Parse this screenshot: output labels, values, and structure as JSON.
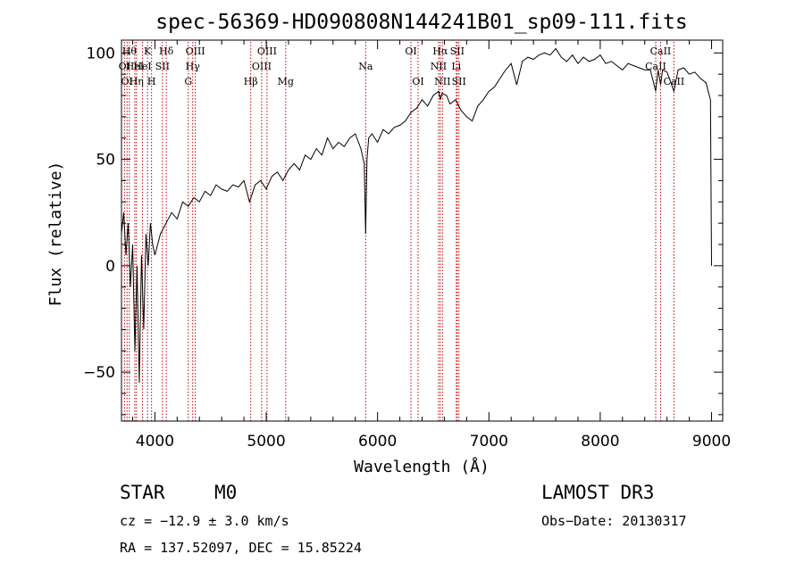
{
  "chart_data": {
    "type": "line",
    "title": "spec-56369-HD090808N144241B01_sp09-111.fits",
    "xlabel": "Wavelength (Å)",
    "ylabel": "Flux (relative)",
    "xlim": [
      3700,
      9100
    ],
    "ylim": [
      -73,
      106
    ],
    "x_ticks": [
      4000,
      5000,
      6000,
      7000,
      8000,
      9000
    ],
    "y_ticks": [
      -50,
      0,
      50,
      100
    ],
    "grid": false,
    "series": [
      {
        "name": "flux",
        "x": [
          3700,
          3720,
          3740,
          3760,
          3780,
          3800,
          3820,
          3840,
          3860,
          3880,
          3900,
          3920,
          3940,
          3960,
          3980,
          4000,
          4050,
          4100,
          4150,
          4200,
          4250,
          4300,
          4350,
          4400,
          4450,
          4500,
          4550,
          4600,
          4650,
          4700,
          4750,
          4800,
          4850,
          4900,
          4950,
          5000,
          5050,
          5100,
          5150,
          5200,
          5250,
          5300,
          5350,
          5400,
          5450,
          5500,
          5550,
          5600,
          5650,
          5700,
          5750,
          5800,
          5850,
          5880,
          5893,
          5905,
          5920,
          5950,
          6000,
          6050,
          6100,
          6150,
          6200,
          6250,
          6300,
          6350,
          6400,
          6450,
          6500,
          6550,
          6563,
          6580,
          6620,
          6650,
          6700,
          6750,
          6800,
          6850,
          6900,
          6950,
          7000,
          7050,
          7100,
          7150,
          7200,
          7250,
          7300,
          7350,
          7400,
          7450,
          7500,
          7550,
          7600,
          7650,
          7700,
          7750,
          7800,
          7850,
          7900,
          7950,
          8000,
          8050,
          8100,
          8150,
          8200,
          8250,
          8300,
          8350,
          8400,
          8450,
          8498,
          8520,
          8542,
          8560,
          8600,
          8662,
          8700,
          8750,
          8800,
          8850,
          8900,
          8950,
          8990,
          9000
        ],
        "values": [
          15,
          25,
          5,
          20,
          -10,
          10,
          -40,
          0,
          -55,
          5,
          -30,
          15,
          0,
          20,
          10,
          5,
          15,
          20,
          25,
          22,
          30,
          28,
          32,
          30,
          35,
          33,
          38,
          36,
          35,
          38,
          37,
          40,
          30,
          38,
          40,
          36,
          42,
          44,
          40,
          45,
          48,
          45,
          52,
          50,
          55,
          52,
          60,
          55,
          58,
          56,
          60,
          62,
          55,
          48,
          15,
          50,
          60,
          62,
          58,
          64,
          62,
          65,
          66,
          68,
          72,
          74,
          78,
          75,
          80,
          82,
          78,
          81,
          80,
          76,
          78,
          73,
          70,
          68,
          75,
          78,
          82,
          84,
          88,
          92,
          95,
          85,
          96,
          98,
          97,
          99,
          100,
          99,
          102,
          98,
          96,
          99,
          95,
          98,
          96,
          97,
          99,
          95,
          96,
          94,
          92,
          95,
          94,
          93,
          92,
          92,
          82,
          92,
          85,
          92,
          91,
          82,
          92,
          93,
          90,
          91,
          88,
          86,
          78,
          0
        ]
      }
    ],
    "lines": [
      {
        "wavelength": 3727,
        "row": 2,
        "label": "OI"
      },
      {
        "wavelength": 3750,
        "row": 3,
        "label": "OI"
      },
      {
        "wavelength": 3771,
        "row": 1,
        "label": "Hθ"
      },
      {
        "wavelength": 3820,
        "row": 2,
        "label": "HeI"
      },
      {
        "wavelength": 3835,
        "row": 3,
        "label": "Hη"
      },
      {
        "wavelength": 3889,
        "row": 2,
        "label": "HeI"
      },
      {
        "wavelength": 3934,
        "row": 1,
        "label": "K"
      },
      {
        "wavelength": 3970,
        "row": 3,
        "label": "H"
      },
      {
        "wavelength": 4068,
        "row": 2,
        "label": "SII"
      },
      {
        "wavelength": 4102,
        "row": 1,
        "label": "Hδ"
      },
      {
        "wavelength": 4300,
        "row": 3,
        "label": "G"
      },
      {
        "wavelength": 4340,
        "row": 2,
        "label": "Hγ"
      },
      {
        "wavelength": 4363,
        "row": 1,
        "label": "OIII"
      },
      {
        "wavelength": 4861,
        "row": 3,
        "label": "Hβ"
      },
      {
        "wavelength": 4959,
        "row": 2,
        "label": "OIII"
      },
      {
        "wavelength": 5007,
        "row": 1,
        "label": "OIII"
      },
      {
        "wavelength": 5175,
        "row": 3,
        "label": "Mg"
      },
      {
        "wavelength": 5893,
        "row": 2,
        "label": "Na"
      },
      {
        "wavelength": 6300,
        "row": 1,
        "label": "OI"
      },
      {
        "wavelength": 6364,
        "row": 3,
        "label": "OI"
      },
      {
        "wavelength": 6548,
        "row": 2,
        "label": "NII"
      },
      {
        "wavelength": 6563,
        "row": 1,
        "label": "Hα"
      },
      {
        "wavelength": 6583,
        "row": 3,
        "label": "NII"
      },
      {
        "wavelength": 6707,
        "row": 2,
        "label": "Li"
      },
      {
        "wavelength": 6716,
        "row": 1,
        "label": "SII"
      },
      {
        "wavelength": 6731,
        "row": 3,
        "label": "SII"
      },
      {
        "wavelength": 8498,
        "row": 2,
        "label": "CaII"
      },
      {
        "wavelength": 8542,
        "row": 1,
        "label": "CaII"
      },
      {
        "wavelength": 8662,
        "row": 3,
        "label": "CaII"
      }
    ]
  },
  "info": {
    "class": "STAR",
    "subclass": "M0",
    "survey": "LAMOST DR3",
    "cz": "cz = −12.9 ± 3.0 km/s",
    "obs_date": "Obs−Date: 20130317",
    "coords": "RA = 137.52097, DEC =  15.85224"
  }
}
